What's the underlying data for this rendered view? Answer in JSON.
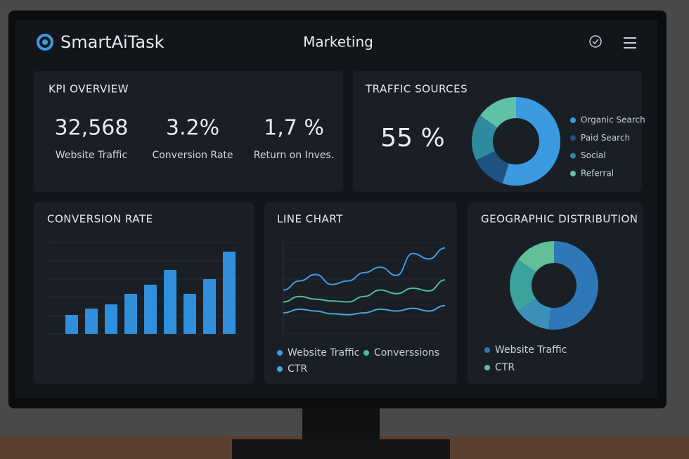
{
  "header": {
    "brand": "SmartAiTask",
    "title": "Marketing"
  },
  "kpi": {
    "title": "KPI OVERVIEW",
    "items": [
      {
        "value": "32,568",
        "label": "Website Traffic"
      },
      {
        "value": "3.2%",
        "label": "Conversion Rate"
      },
      {
        "value": "1,7 %",
        "label": "Return on Inves."
      }
    ]
  },
  "traffic_sources": {
    "title": "TRAFFIC SOURCES",
    "center": "55 %",
    "chart": {
      "type": "pie",
      "categories": [
        "Organic Search",
        "Paid Search",
        "Social",
        "Referral"
      ],
      "values": [
        55,
        13,
        17,
        15
      ],
      "colors": [
        "#3a9be0",
        "#1f527e",
        "#2f8aa0",
        "#5fc1a6"
      ]
    }
  },
  "conversion_rate": {
    "title": "CONVERSION RATE",
    "chart": {
      "type": "bar",
      "values": [
        27,
        36,
        42,
        57,
        70,
        91,
        57,
        78,
        117
      ],
      "color": "#2f8fdc",
      "ylim": [
        0,
        130
      ],
      "yticks": [
        0,
        26,
        52,
        78,
        104,
        130
      ],
      "grid": true
    }
  },
  "line_chart": {
    "title": "LINE CHART",
    "chart": {
      "type": "line",
      "ylim": [
        0,
        100
      ],
      "yticks": [
        0,
        20,
        40,
        60,
        80,
        100
      ],
      "grid": true,
      "series": [
        {
          "name": "Website Traffic",
          "color": "#3f9be6",
          "values": [
            48,
            58,
            65,
            54,
            58,
            67,
            73,
            64,
            88,
            82,
            94
          ]
        },
        {
          "name": "Converssions",
          "color": "#4fb8a0",
          "values": [
            35,
            41,
            38,
            36,
            35,
            41,
            48,
            44,
            50,
            47,
            59
          ]
        },
        {
          "name": "CTR",
          "color": "#4aa6d8",
          "values": [
            23,
            27,
            25,
            22,
            21,
            23,
            27,
            25,
            28,
            25,
            31
          ]
        }
      ]
    }
  },
  "geographic_distribution": {
    "title": "GEOGRAPHIC DISTRIBUTION",
    "chart": {
      "type": "pie",
      "categories": [
        "Website Traffic",
        null,
        null,
        "CTR"
      ],
      "values": [
        52,
        13,
        20,
        15
      ],
      "colors": [
        "#2e78b8",
        "#3b8fb8",
        "#3aa39b",
        "#62bf98"
      ]
    }
  }
}
